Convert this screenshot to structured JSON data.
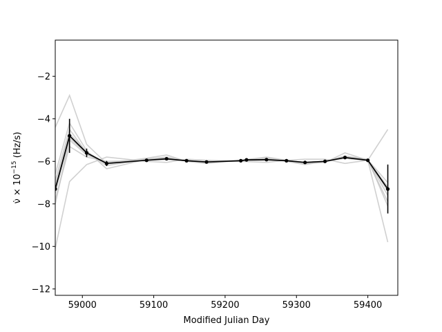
{
  "chart_data": {
    "type": "line",
    "title": "",
    "xlabel": "Modified Julian Day",
    "ylabel_prefix": "ν̇ × 10",
    "ylabel_exp": "−15",
    "ylabel_suffix": " (Hz/s)",
    "xlim": [
      58962,
      59442
    ],
    "ylim": [
      -12.3,
      -0.3
    ],
    "xticks": [
      59000,
      59100,
      59200,
      59300,
      59400
    ],
    "yticks": [
      -12,
      -10,
      -8,
      -6,
      -4,
      -2
    ],
    "ytick_labels": [
      "−12",
      "−10",
      "−8",
      "−6",
      "−4",
      "−2"
    ],
    "grid": false,
    "legend": "none",
    "colors": {
      "main": "#000000",
      "ensemble": "#c0c0c0"
    },
    "main_series": {
      "x": [
        58962,
        58982,
        59006,
        59034,
        59090,
        59118,
        59146,
        59174,
        59222,
        59230,
        59258,
        59286,
        59312,
        59340,
        59368,
        59400,
        59428
      ],
      "y": [
        -7.3,
        -4.8,
        -5.6,
        -6.1,
        -5.95,
        -5.88,
        -5.97,
        -6.03,
        -5.97,
        -5.93,
        -5.92,
        -5.97,
        -6.05,
        -6.0,
        -5.82,
        -5.95,
        -7.3
      ],
      "err": [
        0,
        0.8,
        0.2,
        0.12,
        0.05,
        0.05,
        0.04,
        0.04,
        0.04,
        0.04,
        0.04,
        0.04,
        0.04,
        0.04,
        0.06,
        0.05,
        1.15
      ]
    },
    "ensemble": [
      {
        "x": [
          58962,
          58982,
          59006,
          59034,
          59090,
          59118,
          59146,
          59174,
          59222,
          59258,
          59286,
          59312,
          59340,
          59368,
          59400,
          59428
        ],
        "y": [
          -4.4,
          -2.9,
          -5.2,
          -6.1,
          -5.85,
          -5.7,
          -6.0,
          -6.1,
          -5.95,
          -5.8,
          -5.95,
          -6.1,
          -6.05,
          -5.6,
          -5.95,
          -9.8
        ]
      },
      {
        "x": [
          58962,
          58982,
          59006,
          59034,
          59090,
          59118,
          59146,
          59174,
          59222,
          59258,
          59286,
          59312,
          59340,
          59368,
          59400,
          59428
        ],
        "y": [
          -10.1,
          -6.95,
          -6.15,
          -5.8,
          -6.0,
          -6.05,
          -5.9,
          -5.95,
          -6.0,
          -6.05,
          -5.95,
          -5.9,
          -5.9,
          -6.1,
          -5.95,
          -4.5
        ]
      },
      {
        "x": [
          58962,
          58982,
          59006,
          59034,
          59090,
          59118,
          59146,
          59174,
          59222,
          59258,
          59286,
          59312,
          59340,
          59368,
          59400,
          59428
        ],
        "y": [
          -6.6,
          -4.2,
          -5.5,
          -6.35,
          -5.9,
          -5.85,
          -5.95,
          -6.05,
          -5.95,
          -5.85,
          -6.0,
          -6.15,
          -6.0,
          -5.75,
          -5.9,
          -8.1
        ]
      },
      {
        "x": [
          58962,
          58982,
          59006,
          59034,
          59090,
          59118,
          59146,
          59174,
          59222,
          59258,
          59286,
          59312,
          59340,
          59368,
          59400,
          59428
        ],
        "y": [
          -7.8,
          -5.3,
          -5.8,
          -6.0,
          -5.95,
          -5.9,
          -5.97,
          -6.0,
          -5.97,
          -5.95,
          -5.97,
          -6.05,
          -6.0,
          -5.85,
          -5.95,
          -7.6
        ]
      },
      {
        "x": [
          58962,
          58982,
          59006,
          59034,
          59090,
          59118,
          59146,
          59174,
          59222,
          59258,
          59286,
          59312,
          59340,
          59368,
          59400,
          59428
        ],
        "y": [
          -6.9,
          -4.5,
          -5.6,
          -6.2,
          -5.9,
          -5.8,
          -5.98,
          -6.02,
          -5.96,
          -5.9,
          -5.98,
          -6.08,
          -6.02,
          -5.8,
          -5.93,
          -7.0
        ]
      },
      {
        "x": [
          58962,
          58982,
          59006,
          59034,
          59090,
          59118,
          59146,
          59174,
          59222,
          59258,
          59286,
          59312,
          59340,
          59368,
          59400,
          59428
        ],
        "y": [
          -8.0,
          -5.0,
          -5.7,
          -6.05,
          -5.95,
          -5.92,
          -5.96,
          -6.03,
          -5.98,
          -5.94,
          -5.97,
          -6.04,
          -5.99,
          -5.86,
          -5.96,
          -7.9
        ]
      },
      {
        "x": [
          58962,
          58982,
          59006,
          59034,
          59090,
          59118,
          59146,
          59174,
          59222,
          59258,
          59286,
          59312,
          59340,
          59368,
          59400,
          59428
        ],
        "y": [
          -7.1,
          -4.7,
          -5.55,
          -6.12,
          -5.93,
          -5.87,
          -5.97,
          -6.02,
          -5.97,
          -5.91,
          -5.96,
          -6.06,
          -6.01,
          -5.82,
          -5.94,
          -7.2
        ]
      },
      {
        "x": [
          58962,
          58982,
          59006,
          59034,
          59090,
          59118,
          59146,
          59174,
          59222,
          59258,
          59286,
          59312,
          59340,
          59368,
          59400,
          59428
        ],
        "y": [
          -7.5,
          -4.9,
          -5.65,
          -6.08,
          -5.96,
          -5.89,
          -5.97,
          -6.04,
          -5.97,
          -5.93,
          -5.97,
          -6.05,
          -6.0,
          -5.84,
          -5.95,
          -7.4
        ]
      }
    ]
  }
}
